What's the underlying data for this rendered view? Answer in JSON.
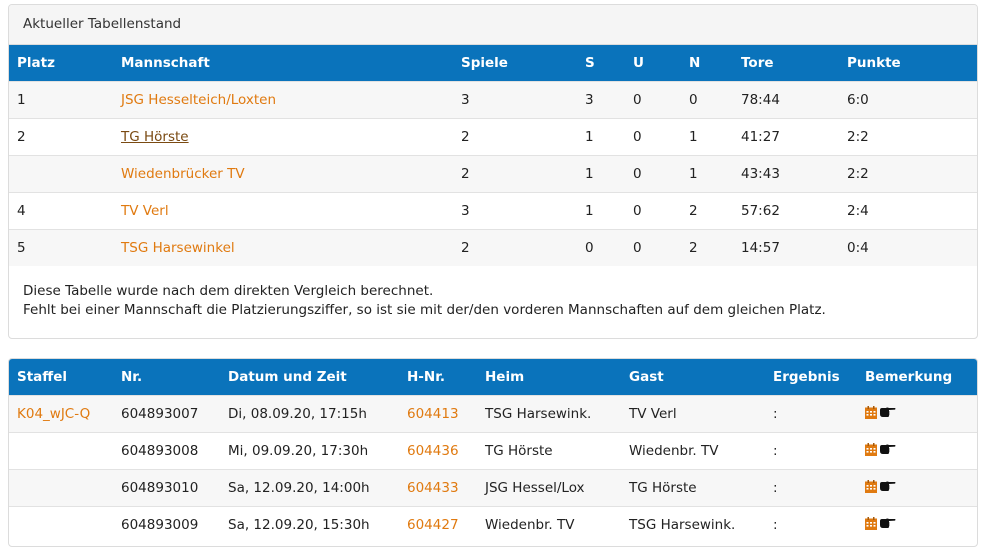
{
  "standings": {
    "heading": "Aktueller Tabellenstand",
    "columns": [
      "Platz",
      "Mannschaft",
      "Spiele",
      "S",
      "U",
      "N",
      "Tore",
      "Punkte"
    ],
    "rows": [
      {
        "platz": "1",
        "team": "JSG Hesselteich/Loxten",
        "spiele": "3",
        "s": "3",
        "u": "0",
        "n": "0",
        "tore": "78:44",
        "punkte": "6:0"
      },
      {
        "platz": "2",
        "team": "TG Hörste",
        "spiele": "2",
        "s": "1",
        "u": "0",
        "n": "1",
        "tore": "41:27",
        "punkte": "2:2"
      },
      {
        "platz": "",
        "team": "Wiedenbrücker TV",
        "spiele": "2",
        "s": "1",
        "u": "0",
        "n": "1",
        "tore": "43:43",
        "punkte": "2:2"
      },
      {
        "platz": "4",
        "team": "TV Verl",
        "spiele": "3",
        "s": "1",
        "u": "0",
        "n": "2",
        "tore": "57:62",
        "punkte": "2:4"
      },
      {
        "platz": "5",
        "team": "TSG Harsewinkel",
        "spiele": "2",
        "s": "0",
        "u": "0",
        "n": "2",
        "tore": "14:57",
        "punkte": "0:4"
      }
    ],
    "note_line1": "Diese Tabelle wurde nach dem direkten Vergleich berechnet.",
    "note_line2": "Fehlt bei einer Mannschaft die Platzierungsziffer, so ist sie mit der/den vorderen Mannschaften auf dem gleichen Platz."
  },
  "games": {
    "columns": [
      "Staffel",
      "Nr.",
      "Datum und Zeit",
      "H-Nr.",
      "Heim",
      "Gast",
      "Ergebnis",
      "Bemerkung"
    ],
    "rows": [
      {
        "staffel": "K04_wJC-Q",
        "nr": "604893007",
        "datum": "Di, 08.09.20, 17:15h",
        "hnr": "604413",
        "heim": "TSG Harsewink.",
        "gast": "TV Verl",
        "ergebnis": ":"
      },
      {
        "staffel": "",
        "nr": "604893008",
        "datum": "Mi, 09.09.20, 17:30h",
        "hnr": "604436",
        "heim": "TG Hörste",
        "gast": "Wiedenbr. TV",
        "ergebnis": ":"
      },
      {
        "staffel": "",
        "nr": "604893010",
        "datum": "Sa, 12.09.20, 14:00h",
        "hnr": "604433",
        "heim": "JSG Hessel/Lox",
        "gast": "TG Hörste",
        "ergebnis": ":"
      },
      {
        "staffel": "",
        "nr": "604893009",
        "datum": "Sa, 12.09.20, 15:30h",
        "hnr": "604427",
        "heim": "Wiedenbr. TV",
        "gast": "TSG Harsewink.",
        "ergebnis": ":"
      }
    ],
    "remark_icons": [
      "calendar-icon",
      "pointing-hand-icon"
    ]
  },
  "colors": {
    "header_blue": "#0a73bb",
    "link_orange": "#e07a10",
    "visited_link": "#7a4a12"
  }
}
